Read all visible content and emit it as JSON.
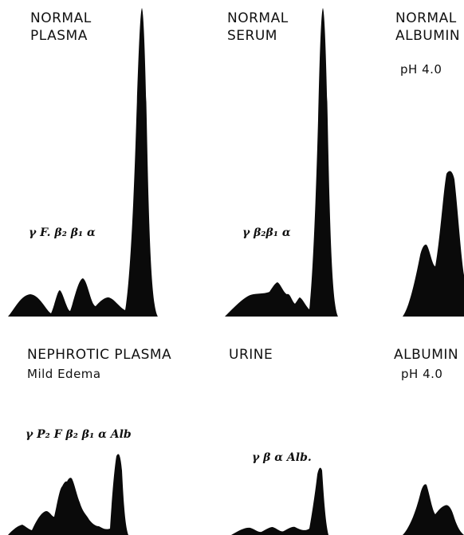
{
  "panels": {
    "normal_plasma": {
      "title_line1": "NORMAL",
      "title_line2": "PLASMA",
      "fractions": "γ   F. β₂ β₁   α"
    },
    "normal_serum": {
      "title_line1": "NORMAL",
      "title_line2": "SERUM",
      "fractions": "γ   β₂β₁ α"
    },
    "normal_albumin": {
      "title_line1": "NORMAL",
      "title_line2": "ALBUMIN",
      "title_line3": "pH 4.0"
    },
    "nephrotic_plasma": {
      "title_line1": "NEPHROTIC  PLASMA",
      "title_line2": "Mild Edema",
      "fractions": "γ P₂ F β₂ β₁ α  Alb"
    },
    "urine": {
      "title_line1": "URINE",
      "fractions": "γ   β   α   Alb."
    },
    "albumin": {
      "title_line1": "ALBUMIN",
      "title_line2": "pH 4.0"
    }
  }
}
